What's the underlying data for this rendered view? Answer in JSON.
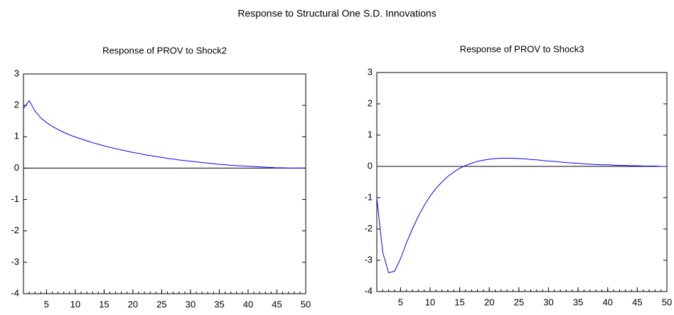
{
  "title": "Response to Structural One S.D. Innovations",
  "chart_data": [
    {
      "type": "line",
      "title": "Response of PROV to Shock2",
      "x": [
        1,
        2,
        3,
        4,
        5,
        6,
        7,
        8,
        9,
        10,
        11,
        12,
        13,
        14,
        15,
        16,
        17,
        18,
        19,
        20,
        21,
        22,
        23,
        24,
        25,
        26,
        27,
        28,
        29,
        30,
        31,
        32,
        33,
        34,
        35,
        36,
        37,
        38,
        39,
        40,
        41,
        42,
        43,
        44,
        45,
        46,
        47,
        48,
        49,
        50
      ],
      "series": [
        {
          "color": "#0000ff",
          "values": [
            1.9,
            2.15,
            1.82,
            1.6,
            1.45,
            1.33,
            1.23,
            1.14,
            1.06,
            0.99,
            0.93,
            0.87,
            0.81,
            0.76,
            0.71,
            0.66,
            0.62,
            0.58,
            0.54,
            0.5,
            0.47,
            0.43,
            0.4,
            0.37,
            0.34,
            0.31,
            0.29,
            0.26,
            0.24,
            0.22,
            0.2,
            0.18,
            0.16,
            0.14,
            0.12,
            0.11,
            0.09,
            0.08,
            0.07,
            0.06,
            0.05,
            0.04,
            0.03,
            0.02,
            0.01,
            0.01,
            0,
            0,
            0,
            0
          ]
        }
      ],
      "xlim": [
        1,
        50
      ],
      "xticks": [
        5,
        10,
        15,
        20,
        25,
        30,
        35,
        40,
        45,
        50
      ],
      "ylim": [
        -4,
        3
      ],
      "yticks": [
        3,
        2,
        1,
        0,
        -1,
        -2,
        -3,
        -4
      ],
      "zero_line": true
    },
    {
      "type": "line",
      "title": "Response of PROV to Shock3",
      "x": [
        1,
        2,
        3,
        4,
        5,
        6,
        7,
        8,
        9,
        10,
        11,
        12,
        13,
        14,
        15,
        16,
        17,
        18,
        19,
        20,
        21,
        22,
        23,
        24,
        25,
        26,
        27,
        28,
        29,
        30,
        31,
        32,
        33,
        34,
        35,
        36,
        37,
        38,
        39,
        40,
        41,
        42,
        43,
        44,
        45,
        46,
        47,
        48,
        49,
        50
      ],
      "series": [
        {
          "color": "#0000ff",
          "values": [
            -1.0,
            -2.75,
            -3.4,
            -3.35,
            -2.95,
            -2.45,
            -2.0,
            -1.6,
            -1.25,
            -0.95,
            -0.7,
            -0.5,
            -0.32,
            -0.18,
            -0.06,
            0.03,
            0.1,
            0.16,
            0.2,
            0.23,
            0.25,
            0.26,
            0.26,
            0.26,
            0.25,
            0.24,
            0.22,
            0.21,
            0.19,
            0.17,
            0.16,
            0.14,
            0.12,
            0.11,
            0.1,
            0.08,
            0.07,
            0.06,
            0.05,
            0.05,
            0.04,
            0.03,
            0.03,
            0.02,
            0.02,
            0.01,
            0.01,
            0.01,
            0,
            0
          ]
        }
      ],
      "xlim": [
        1,
        50
      ],
      "xticks": [
        5,
        10,
        15,
        20,
        25,
        30,
        35,
        40,
        45,
        50
      ],
      "ylim": [
        -4,
        3
      ],
      "yticks": [
        3,
        2,
        1,
        0,
        -1,
        -2,
        -3,
        -4
      ],
      "zero_line": true
    }
  ]
}
